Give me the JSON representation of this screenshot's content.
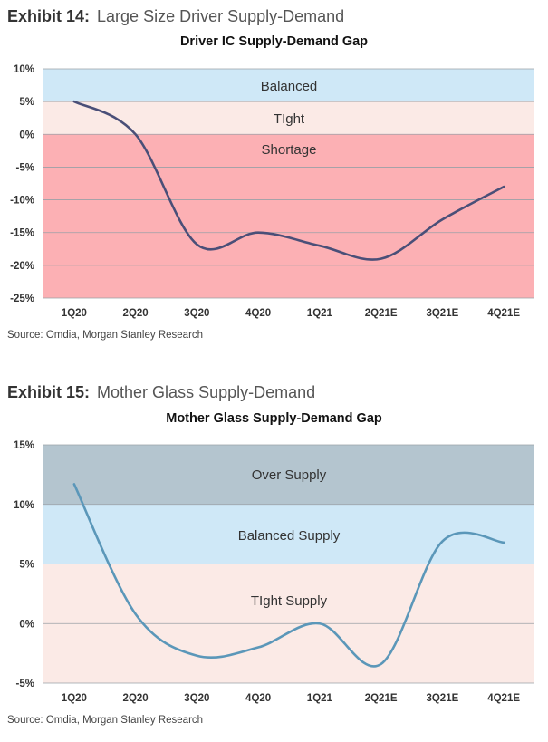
{
  "source_text": "Source: Omdia, Morgan Stanley Research",
  "exhibits": [
    {
      "label": "Exhibit 14:",
      "name": "Large Size Driver Supply-Demand"
    },
    {
      "label": "Exhibit 15:",
      "name": "Mother Glass Supply-Demand"
    }
  ],
  "chart_data": [
    {
      "type": "line",
      "title": "Driver IC Supply-Demand Gap",
      "xlabel": "",
      "ylabel": "",
      "categories": [
        "1Q20",
        "2Q20",
        "3Q20",
        "4Q20",
        "1Q21",
        "2Q21E",
        "3Q21E",
        "4Q21E"
      ],
      "series": [
        {
          "values": [
            5,
            0,
            -16.8,
            -15,
            -17,
            -19,
            -13,
            -8
          ],
          "color": "#4a4f78"
        }
      ],
      "ylim": [
        -25,
        10
      ],
      "yticks": [
        10,
        5,
        0,
        -5,
        -10,
        -15,
        -20,
        -25
      ],
      "ytick_labels": [
        "10%",
        "5%",
        "0%",
        "-5%",
        "-10%",
        "-15%",
        "-20%",
        "-25%"
      ],
      "bands": [
        {
          "label": "Balanced",
          "from": 5,
          "to": 10,
          "color": "#cfe8f7"
        },
        {
          "label": "TIght",
          "from": 0,
          "to": 5,
          "color": "#fbeae6"
        },
        {
          "label": "Shortage",
          "from": -25,
          "to": 0,
          "color": "#fcb0b4"
        }
      ],
      "grid": true,
      "legend": "none"
    },
    {
      "type": "line",
      "title": "Mother Glass Supply-Demand Gap",
      "xlabel": "",
      "ylabel": "",
      "categories": [
        "1Q20",
        "2Q20",
        "3Q20",
        "4Q20",
        "1Q21",
        "2Q21E",
        "3Q21E",
        "4Q21E"
      ],
      "series": [
        {
          "values": [
            11.7,
            0.8,
            -2.7,
            -2,
            0,
            -3.4,
            6.9,
            6.8
          ],
          "color": "#5b97b9"
        }
      ],
      "ylim": [
        -5,
        15
      ],
      "yticks": [
        15,
        10,
        5,
        0,
        -5
      ],
      "ytick_labels": [
        "15%",
        "10%",
        "5%",
        "0%",
        "-5%"
      ],
      "bands": [
        {
          "label": "Over Supply",
          "from": 10,
          "to": 15,
          "color": "#b4c5cf"
        },
        {
          "label": "Balanced Supply",
          "from": 5,
          "to": 10,
          "color": "#cfe8f7"
        },
        {
          "label": "TIght Supply",
          "from": -5,
          "to": 5,
          "color": "#fbeae6"
        }
      ],
      "grid": true,
      "legend": "none"
    }
  ]
}
